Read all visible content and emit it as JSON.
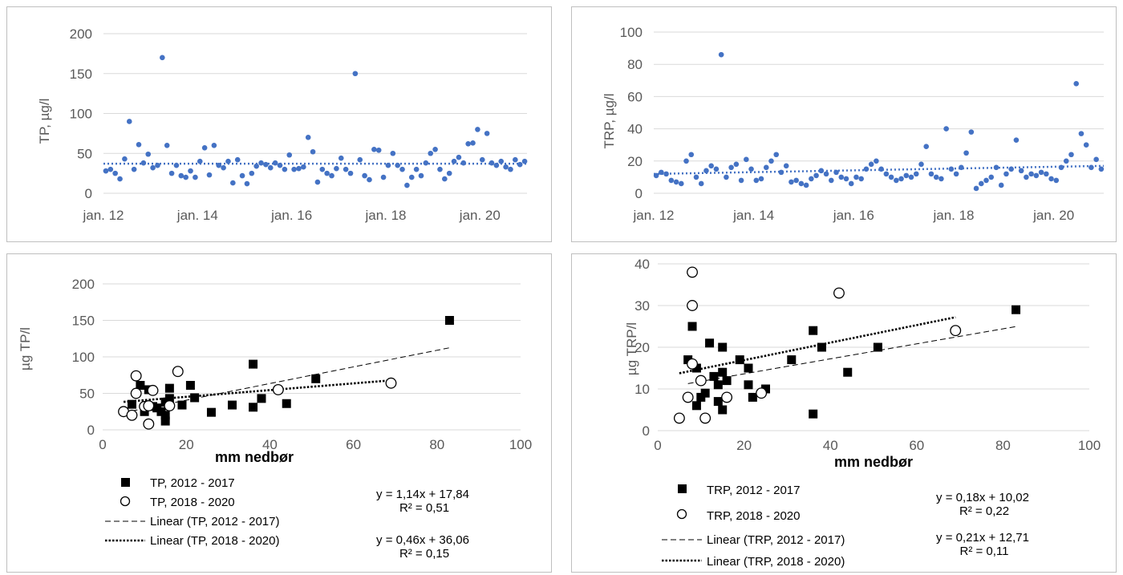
{
  "colors": {
    "dots": "#4472c4",
    "axis": "#595959",
    "grid": "#d9d9d9",
    "black": "#000000"
  },
  "chart_data": [
    {
      "type": "scatter",
      "ylabel": "TP, µg/l",
      "ylim": [
        0,
        200
      ],
      "yticks": [
        "0",
        "50",
        "100",
        "150",
        "200"
      ],
      "xlabels": [
        "jan. 12",
        "jan. 14",
        "jan. 16",
        "jan. 18",
        "jan. 20"
      ],
      "grid": true,
      "trendline": {
        "style": "dotted",
        "y": 37
      },
      "x": [
        2012.05,
        2012.15,
        2012.25,
        2012.35,
        2012.45,
        2012.55,
        2012.65,
        2012.75,
        2012.85,
        2012.95,
        2013.05,
        2013.15,
        2013.25,
        2013.35,
        2013.45,
        2013.55,
        2013.65,
        2013.75,
        2013.85,
        2013.95,
        2014.05,
        2014.15,
        2014.25,
        2014.35,
        2014.45,
        2014.55,
        2014.65,
        2014.75,
        2014.85,
        2014.95,
        2015.05,
        2015.15,
        2015.25,
        2015.35,
        2015.45,
        2015.55,
        2015.65,
        2015.75,
        2015.85,
        2015.95,
        2016.05,
        2016.15,
        2016.25,
        2016.35,
        2016.45,
        2016.55,
        2016.65,
        2016.75,
        2016.85,
        2016.95,
        2017.05,
        2017.15,
        2017.25,
        2017.35,
        2017.45,
        2017.55,
        2017.65,
        2017.75,
        2017.85,
        2017.95,
        2018.05,
        2018.15,
        2018.25,
        2018.35,
        2018.45,
        2018.55,
        2018.65,
        2018.75,
        2018.85,
        2018.95,
        2019.05,
        2019.15,
        2019.25,
        2019.35,
        2019.45,
        2019.55,
        2019.65,
        2019.75,
        2019.85,
        2019.95,
        2020.05,
        2020.15,
        2020.25,
        2020.35,
        2020.45,
        2020.55,
        2020.65,
        2020.75,
        2020.85,
        2020.95
      ],
      "values": [
        28,
        30,
        25,
        18,
        43,
        90,
        30,
        61,
        38,
        49,
        32,
        35,
        170,
        60,
        25,
        35,
        22,
        20,
        28,
        20,
        40,
        57,
        23,
        60,
        35,
        32,
        40,
        13,
        42,
        22,
        12,
        25,
        34,
        38,
        36,
        32,
        38,
        35,
        30,
        48,
        30,
        31,
        33,
        70,
        52,
        14,
        30,
        25,
        22,
        31,
        44,
        30,
        25,
        150,
        42,
        22,
        17,
        55,
        54,
        20,
        35,
        50,
        35,
        30,
        10,
        20,
        30,
        22,
        38,
        50,
        55,
        30,
        18,
        25,
        40,
        45,
        38,
        62,
        63,
        80,
        42,
        75,
        38,
        35,
        40,
        33,
        30,
        42,
        36,
        40
      ]
    },
    {
      "type": "scatter",
      "ylabel": "TRP, µg/l",
      "ylim": [
        0,
        100
      ],
      "yticks": [
        "0",
        "20",
        "40",
        "60",
        "80",
        "100"
      ],
      "xlabels": [
        "jan. 12",
        "jan. 14",
        "jan. 16",
        "jan. 18",
        "jan. 20"
      ],
      "grid": true,
      "trendline": {
        "style": "dotted",
        "y0": 12,
        "y1": 17
      },
      "x": [
        2012.05,
        2012.15,
        2012.25,
        2012.35,
        2012.45,
        2012.55,
        2012.65,
        2012.75,
        2012.85,
        2012.95,
        2013.05,
        2013.15,
        2013.25,
        2013.35,
        2013.45,
        2013.55,
        2013.65,
        2013.75,
        2013.85,
        2013.95,
        2014.05,
        2014.15,
        2014.25,
        2014.35,
        2014.45,
        2014.55,
        2014.65,
        2014.75,
        2014.85,
        2014.95,
        2015.05,
        2015.15,
        2015.25,
        2015.35,
        2015.45,
        2015.55,
        2015.65,
        2015.75,
        2015.85,
        2015.95,
        2016.05,
        2016.15,
        2016.25,
        2016.35,
        2016.45,
        2016.55,
        2016.65,
        2016.75,
        2016.85,
        2016.95,
        2017.05,
        2017.15,
        2017.25,
        2017.35,
        2017.45,
        2017.55,
        2017.65,
        2017.75,
        2017.85,
        2017.95,
        2018.05,
        2018.15,
        2018.25,
        2018.35,
        2018.45,
        2018.55,
        2018.65,
        2018.75,
        2018.85,
        2018.95,
        2019.05,
        2019.15,
        2019.25,
        2019.35,
        2019.45,
        2019.55,
        2019.65,
        2019.75,
        2019.85,
        2019.95,
        2020.05,
        2020.15,
        2020.25,
        2020.35,
        2020.45,
        2020.55,
        2020.65,
        2020.75,
        2020.85,
        2020.95
      ],
      "values": [
        11,
        13,
        12,
        8,
        7,
        6,
        20,
        24,
        10,
        6,
        14,
        17,
        15,
        86,
        10,
        16,
        18,
        8,
        21,
        15,
        8,
        9,
        16,
        20,
        24,
        13,
        17,
        7,
        8,
        6,
        5,
        9,
        11,
        14,
        12,
        8,
        13,
        10,
        9,
        6,
        10,
        9,
        15,
        18,
        20,
        15,
        12,
        10,
        8,
        9,
        11,
        10,
        12,
        18,
        29,
        12,
        10,
        9,
        40,
        15,
        12,
        16,
        25,
        38,
        3,
        6,
        8,
        10,
        16,
        5,
        12,
        15,
        33,
        14,
        10,
        12,
        11,
        13,
        12,
        9,
        8,
        16,
        20,
        24,
        68,
        37,
        30,
        16,
        21,
        15
      ]
    },
    {
      "type": "scatter",
      "xlabel": "mm nedbør",
      "ylabel": "µg TP/l",
      "xlim": [
        0,
        100
      ],
      "ylim": [
        0,
        200
      ],
      "xticks": [
        "0",
        "20",
        "40",
        "60",
        "80",
        "100"
      ],
      "yticks": [
        "0",
        "50",
        "100",
        "150",
        "200"
      ],
      "grid": true,
      "legend_placement": "bottom",
      "series": [
        {
          "name": "TP, 2012 - 2017",
          "marker": "filled-square",
          "x": [
            7,
            9,
            10,
            11,
            12,
            13,
            14,
            15,
            15,
            15,
            16,
            16,
            19,
            21,
            22,
            26,
            31,
            36,
            36,
            38,
            44,
            51,
            83
          ],
          "y": [
            35,
            61,
            25,
            55,
            32,
            30,
            25,
            20,
            12,
            38,
            57,
            43,
            34,
            61,
            44,
            24,
            34,
            90,
            31,
            43,
            36,
            70,
            150
          ]
        },
        {
          "name": "TP, 2018 - 2020",
          "marker": "open-circle",
          "x": [
            5,
            7,
            8,
            8,
            10,
            11,
            11,
            12,
            16,
            18,
            42,
            69
          ],
          "y": [
            25,
            20,
            50,
            74,
            32,
            8,
            33,
            54,
            33,
            80,
            55,
            64
          ]
        }
      ],
      "trendlines": [
        {
          "name": "Linear (TP, 2012 - 2017)",
          "style": "dashed",
          "slope": 1.14,
          "intercept": 17.84,
          "x_range": [
            7,
            83
          ]
        },
        {
          "name": "Linear (TP, 2018 - 2020)",
          "style": "dotted",
          "slope": 0.46,
          "intercept": 36.06,
          "x_range": [
            5,
            69
          ]
        }
      ],
      "equations": [
        {
          "eq": "y = 1,14x + 17,84",
          "r2": "R² = 0,51"
        },
        {
          "eq": "y = 0,46x + 36,06",
          "r2": "R² = 0,15"
        }
      ]
    },
    {
      "type": "scatter",
      "xlabel": "mm nedbør",
      "ylabel": "µg TRP/l",
      "xlim": [
        0,
        100
      ],
      "ylim": [
        0,
        40
      ],
      "xticks": [
        "0",
        "20",
        "40",
        "60",
        "80",
        "100"
      ],
      "yticks": [
        "0",
        "10",
        "20",
        "30",
        "40"
      ],
      "grid": true,
      "legend_placement": "bottom",
      "series": [
        {
          "name": "TRP, 2012 - 2017",
          "marker": "filled-square",
          "x": [
            7,
            8,
            9,
            9,
            10,
            11,
            12,
            13,
            14,
            14,
            15,
            15,
            15,
            16,
            19,
            21,
            21,
            22,
            25,
            31,
            36,
            36,
            38,
            44,
            51,
            83
          ],
          "y": [
            17,
            25,
            6,
            15,
            8,
            9,
            21,
            13,
            7,
            11,
            20,
            14,
            5,
            12,
            17,
            15,
            11,
            8,
            10,
            17,
            24,
            4,
            20,
            14,
            20,
            29
          ],
          "z": []
        },
        {
          "name": "TRP, 2018 - 2020",
          "marker": "open-circle",
          "x": [
            5,
            7,
            8,
            8,
            8,
            10,
            11,
            16,
            24,
            42,
            69
          ],
          "y": [
            3,
            8,
            38,
            30,
            16,
            12,
            3,
            8,
            9,
            33,
            24
          ]
        }
      ],
      "trendlines": [
        {
          "name": "Linear (TRP, 2012 - 2017)",
          "style": "dashed",
          "slope": 0.18,
          "intercept": 10.02,
          "x_range": [
            7,
            83
          ]
        },
        {
          "name": "Linear (TRP, 2018 - 2020)",
          "style": "dotted",
          "slope": 0.21,
          "intercept": 12.71,
          "x_range": [
            5,
            69
          ]
        }
      ],
      "equations": [
        {
          "eq": "y = 0,18x + 10,02",
          "r2": "R² = 0,22"
        },
        {
          "eq": "y = 0,21x + 12,71",
          "r2": "R² = 0,11"
        }
      ]
    }
  ]
}
